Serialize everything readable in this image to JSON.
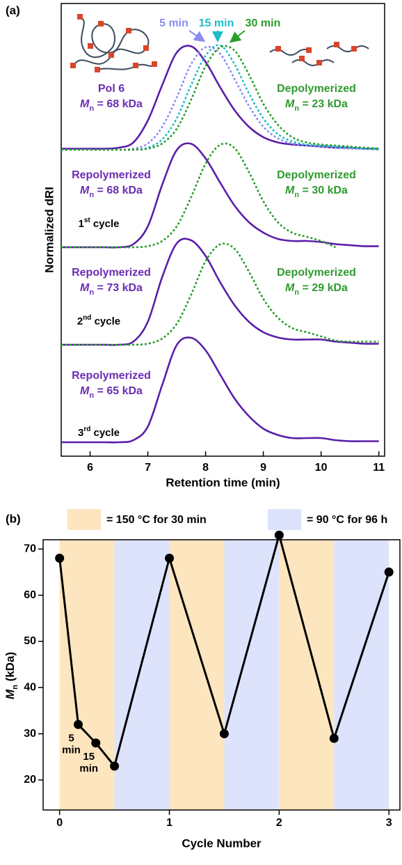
{
  "chart_data": [
    {
      "type": "line",
      "panel_label": "(a)",
      "xlabel": "Retention time (min)",
      "ylabel": "Normalized dRI",
      "xlim": [
        5.5,
        11.1
      ],
      "xticks": [
        6,
        7,
        8,
        9,
        10,
        11
      ],
      "x": [
        5.5,
        5.75,
        6,
        6.25,
        6.5,
        6.75,
        7,
        7.25,
        7.5,
        7.75,
        8,
        8.25,
        8.5,
        8.75,
        9,
        9.25,
        9.5,
        9.75,
        10,
        10.25,
        10.5,
        10.75,
        11
      ],
      "stacks": [
        {
          "series": [
            {
              "color": "#5a1ea8",
              "dash": false,
              "values": [
                0.01,
                0.01,
                0.01,
                0.01,
                0.02,
                0.07,
                0.28,
                0.62,
                0.93,
                0.99,
                0.84,
                0.6,
                0.38,
                0.22,
                0.12,
                0.07,
                0.05,
                0.04,
                0.03,
                0.02,
                0.02,
                0.01,
                0.01
              ]
            },
            {
              "name": "5 min",
              "color": "#8a8cf2",
              "dash": true,
              "values": [
                0,
                0,
                0,
                0,
                0,
                0.01,
                0.06,
                0.22,
                0.5,
                0.82,
                0.98,
                0.92,
                0.68,
                0.42,
                0.22,
                0.11,
                0.06,
                0.04,
                0.03,
                0.02,
                0.01,
                0.01,
                0
              ]
            },
            {
              "name": "15 min",
              "color": "#1cbcc8",
              "dash": true,
              "values": [
                0,
                0,
                0,
                0,
                0,
                0,
                0.02,
                0.1,
                0.3,
                0.62,
                0.9,
                1.0,
                0.82,
                0.54,
                0.3,
                0.15,
                0.08,
                0.05,
                0.04,
                0.03,
                0.02,
                0.01,
                0.01
              ]
            },
            {
              "name": "30 min",
              "color": "#2a9d2a",
              "dash": true,
              "values": [
                0,
                0,
                0,
                0,
                0,
                0,
                0.01,
                0.06,
                0.2,
                0.48,
                0.8,
                0.98,
                0.95,
                0.72,
                0.44,
                0.24,
                0.12,
                0.07,
                0.05,
                0.04,
                0.03,
                0.02,
                0.01
              ]
            }
          ],
          "labels": [
            {
              "color": "#6a2db3",
              "lines": [
                [
                  {
                    "text": "Pol 6"
                  }
                ],
                [
                  {
                    "text": "M",
                    "italic": true
                  },
                  {
                    "text": "n",
                    "sub": true
                  },
                  {
                    "text": " = 68 kDa"
                  }
                ]
              ]
            },
            {
              "color": "#2f9a2f",
              "lines": [
                [
                  {
                    "text": "Depolymerized"
                  }
                ],
                [
                  {
                    "text": "M",
                    "italic": true
                  },
                  {
                    "text": "n",
                    "sub": true
                  },
                  {
                    "text": " = 23 kDa"
                  }
                ]
              ]
            }
          ]
        },
        {
          "series": [
            {
              "color": "#5a1ea8",
              "dash": false,
              "values": [
                0,
                0,
                0,
                0,
                0,
                0.03,
                0.2,
                0.6,
                0.93,
                0.99,
                0.85,
                0.62,
                0.4,
                0.24,
                0.14,
                0.08,
                0.06,
                0.06,
                0.05,
                0.03,
                0.02,
                0.01,
                0.01
              ]
            },
            {
              "color": "#2a9d2a",
              "dash": true,
              "values": [
                0,
                0,
                0,
                0,
                0,
                0,
                0.01,
                0.06,
                0.2,
                0.48,
                0.8,
                0.98,
                0.95,
                0.72,
                0.44,
                0.24,
                0.14,
                0.1,
                0.06,
                0,
                null,
                null,
                null
              ]
            }
          ],
          "labels": [
            {
              "color": "#6a2db3",
              "lines": [
                [
                  {
                    "text": "Repolymerized"
                  }
                ],
                [
                  {
                    "text": "M",
                    "italic": true
                  },
                  {
                    "text": "n",
                    "sub": true
                  },
                  {
                    "text": " = 68 kDa"
                  }
                ]
              ]
            },
            {
              "color": "#2f9a2f",
              "lines": [
                [
                  {
                    "text": "Depolymerized"
                  }
                ],
                [
                  {
                    "text": "M",
                    "italic": true
                  },
                  {
                    "text": "n",
                    "sub": true
                  },
                  {
                    "text": " = 30 kDa"
                  }
                ]
              ]
            }
          ],
          "cycle": [
            {
              "text": "1"
            },
            {
              "text": "st",
              "sup": true
            },
            {
              "text": " cycle"
            }
          ]
        },
        {
          "series": [
            {
              "color": "#5a1ea8",
              "dash": false,
              "values": [
                0,
                0,
                0,
                0,
                0,
                0.03,
                0.22,
                0.65,
                0.97,
                1.0,
                0.85,
                0.6,
                0.38,
                0.22,
                0.12,
                0.07,
                0.05,
                0.05,
                0.05,
                0.03,
                0.02,
                0.01,
                0.01
              ]
            },
            {
              "color": "#2a9d2a",
              "dash": true,
              "values": [
                0,
                0,
                0,
                0,
                0,
                0,
                0.01,
                0.06,
                0.2,
                0.48,
                0.8,
                0.96,
                0.92,
                0.7,
                0.44,
                0.26,
                0.16,
                0.12,
                0.08,
                0.04,
                0.03,
                0.03,
                0.03
              ]
            }
          ],
          "labels": [
            {
              "color": "#6a2db3",
              "lines": [
                [
                  {
                    "text": "Repolymerized"
                  }
                ],
                [
                  {
                    "text": "M",
                    "italic": true
                  },
                  {
                    "text": "n",
                    "sub": true
                  },
                  {
                    "text": " = 73 kDa"
                  }
                ]
              ]
            },
            {
              "color": "#2f9a2f",
              "lines": [
                [
                  {
                    "text": "Depolymerized"
                  }
                ],
                [
                  {
                    "text": "M",
                    "italic": true
                  },
                  {
                    "text": "n",
                    "sub": true
                  },
                  {
                    "text": " = 29 kDa"
                  }
                ]
              ]
            }
          ],
          "cycle": [
            {
              "text": "2"
            },
            {
              "text": "nd",
              "sup": true
            },
            {
              "text": " cycle"
            }
          ]
        },
        {
          "series": [
            {
              "color": "#5a1ea8",
              "dash": false,
              "values": [
                0,
                0,
                0,
                0,
                0,
                0.02,
                0.15,
                0.55,
                0.93,
                1.0,
                0.88,
                0.65,
                0.42,
                0.25,
                0.13,
                0.07,
                0.04,
                0.04,
                0.04,
                0.02,
                0.01,
                0.01,
                0.01
              ]
            }
          ],
          "labels": [
            {
              "color": "#6a2db3",
              "lines": [
                [
                  {
                    "text": "Repolymerized"
                  }
                ],
                [
                  {
                    "text": "M",
                    "italic": true
                  },
                  {
                    "text": "n",
                    "sub": true
                  },
                  {
                    "text": " = 65 kDa"
                  }
                ]
              ]
            }
          ],
          "cycle": [
            {
              "text": "3"
            },
            {
              "text": "rd",
              "sup": true
            },
            {
              "text": " cycle"
            }
          ]
        }
      ]
    },
    {
      "type": "line",
      "panel_label": "(b)",
      "legend": [
        {
          "label": "= 150 °C for 30 min",
          "color": "#fde5bf"
        },
        {
          "label": "= 90 °C for 96 h",
          "color": "#dde3fb"
        }
      ],
      "bands": [
        {
          "from": 0,
          "to": 0.5,
          "color": "#fde5bf"
        },
        {
          "from": 0.5,
          "to": 1,
          "color": "#dde3fb"
        },
        {
          "from": 1,
          "to": 1.5,
          "color": "#fde5bf"
        },
        {
          "from": 1.5,
          "to": 2,
          "color": "#dde3fb"
        },
        {
          "from": 2,
          "to": 2.5,
          "color": "#fde5bf"
        },
        {
          "from": 2.5,
          "to": 3,
          "color": "#dde3fb"
        }
      ],
      "xlabel": "Cycle Number",
      "ylabel": [
        {
          "text": "M",
          "italic": true
        },
        {
          "text": "n",
          "sub": true
        },
        {
          "text": " (kDa)"
        }
      ],
      "x": [
        0,
        0.17,
        0.33,
        0.5,
        1,
        1.5,
        2,
        2.5,
        3
      ],
      "values": [
        68,
        32,
        28,
        23,
        68,
        30,
        73,
        29,
        65
      ],
      "point_labels": [
        null,
        [
          "5",
          "min"
        ],
        [
          "15",
          "min"
        ],
        null,
        null,
        null,
        null,
        null,
        null
      ],
      "color": "#000000",
      "xlim": [
        -0.15,
        3.1
      ],
      "xticks": [
        0,
        1,
        2,
        3
      ],
      "ylim": [
        13.5,
        72
      ],
      "yticks": [
        20,
        30,
        40,
        50,
        60,
        70
      ]
    }
  ]
}
